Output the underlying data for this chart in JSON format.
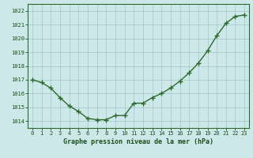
{
  "x": [
    0,
    1,
    2,
    3,
    4,
    5,
    6,
    7,
    8,
    9,
    10,
    11,
    12,
    13,
    14,
    15,
    16,
    17,
    18,
    19,
    20,
    21,
    22,
    23
  ],
  "y": [
    1017.0,
    1016.8,
    1016.4,
    1015.7,
    1015.1,
    1014.7,
    1014.2,
    1014.1,
    1014.1,
    1014.4,
    1014.4,
    1015.3,
    1015.3,
    1015.7,
    1016.0,
    1016.4,
    1016.9,
    1017.5,
    1018.2,
    1019.1,
    1020.2,
    1021.1,
    1021.6,
    1021.7
  ],
  "line_color": "#2d6a2d",
  "marker": "+",
  "marker_size": 4,
  "marker_edge_width": 1.0,
  "bg_color": "#cce8e8",
  "grid_color": "#aacccc",
  "xlabel": "Graphe pression niveau de la mer (hPa)",
  "xlabel_color": "#1a4f1a",
  "tick_color": "#1a4f1a",
  "axis_color": "#2d6a2d",
  "ylim": [
    1013.5,
    1022.5
  ],
  "xlim": [
    -0.5,
    23.5
  ],
  "yticks": [
    1014,
    1015,
    1016,
    1017,
    1018,
    1019,
    1020,
    1021,
    1022
  ],
  "xticks": [
    0,
    1,
    2,
    3,
    4,
    5,
    6,
    7,
    8,
    9,
    10,
    11,
    12,
    13,
    14,
    15,
    16,
    17,
    18,
    19,
    20,
    21,
    22,
    23
  ],
  "line_width": 1.0
}
